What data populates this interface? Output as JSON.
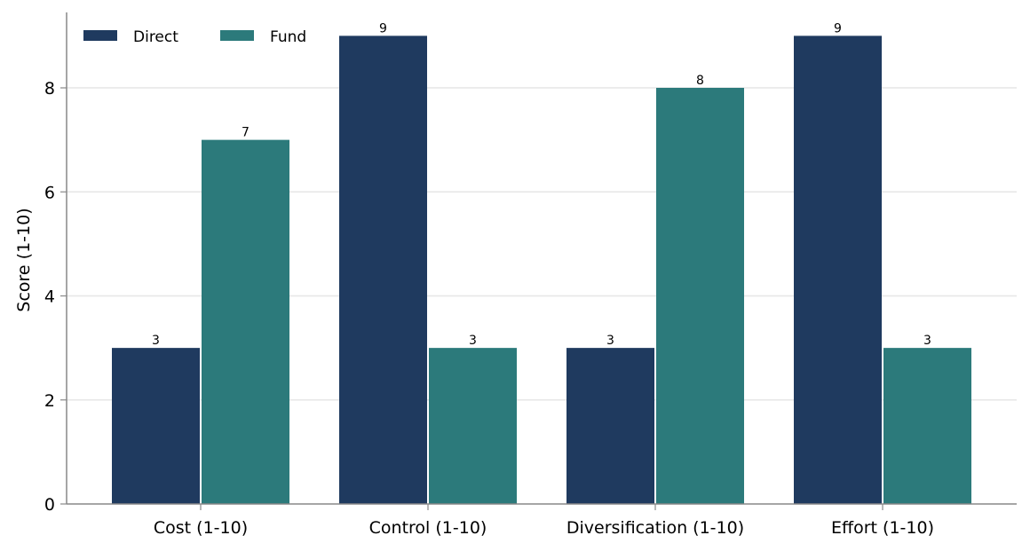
{
  "chart_data": {
    "type": "bar",
    "categories": [
      "Cost (1-10)",
      "Control (1-10)",
      "Diversification (1-10)",
      "Effort (1-10)"
    ],
    "series": [
      {
        "name": "Direct",
        "values": [
          3,
          9,
          3,
          9
        ],
        "color": "#1f3a5f"
      },
      {
        "name": "Fund",
        "values": [
          7,
          3,
          8,
          3
        ],
        "color": "#2c7a7b"
      }
    ],
    "title": "",
    "xlabel": "",
    "ylabel": "Score (1-10)",
    "ylim": [
      0,
      9.45
    ],
    "yticks": [
      0,
      2,
      4,
      6,
      8
    ],
    "grid": "horizontal",
    "legend": "top-left",
    "axis_color": "#888888",
    "grid_color": "#e6e6e6"
  }
}
